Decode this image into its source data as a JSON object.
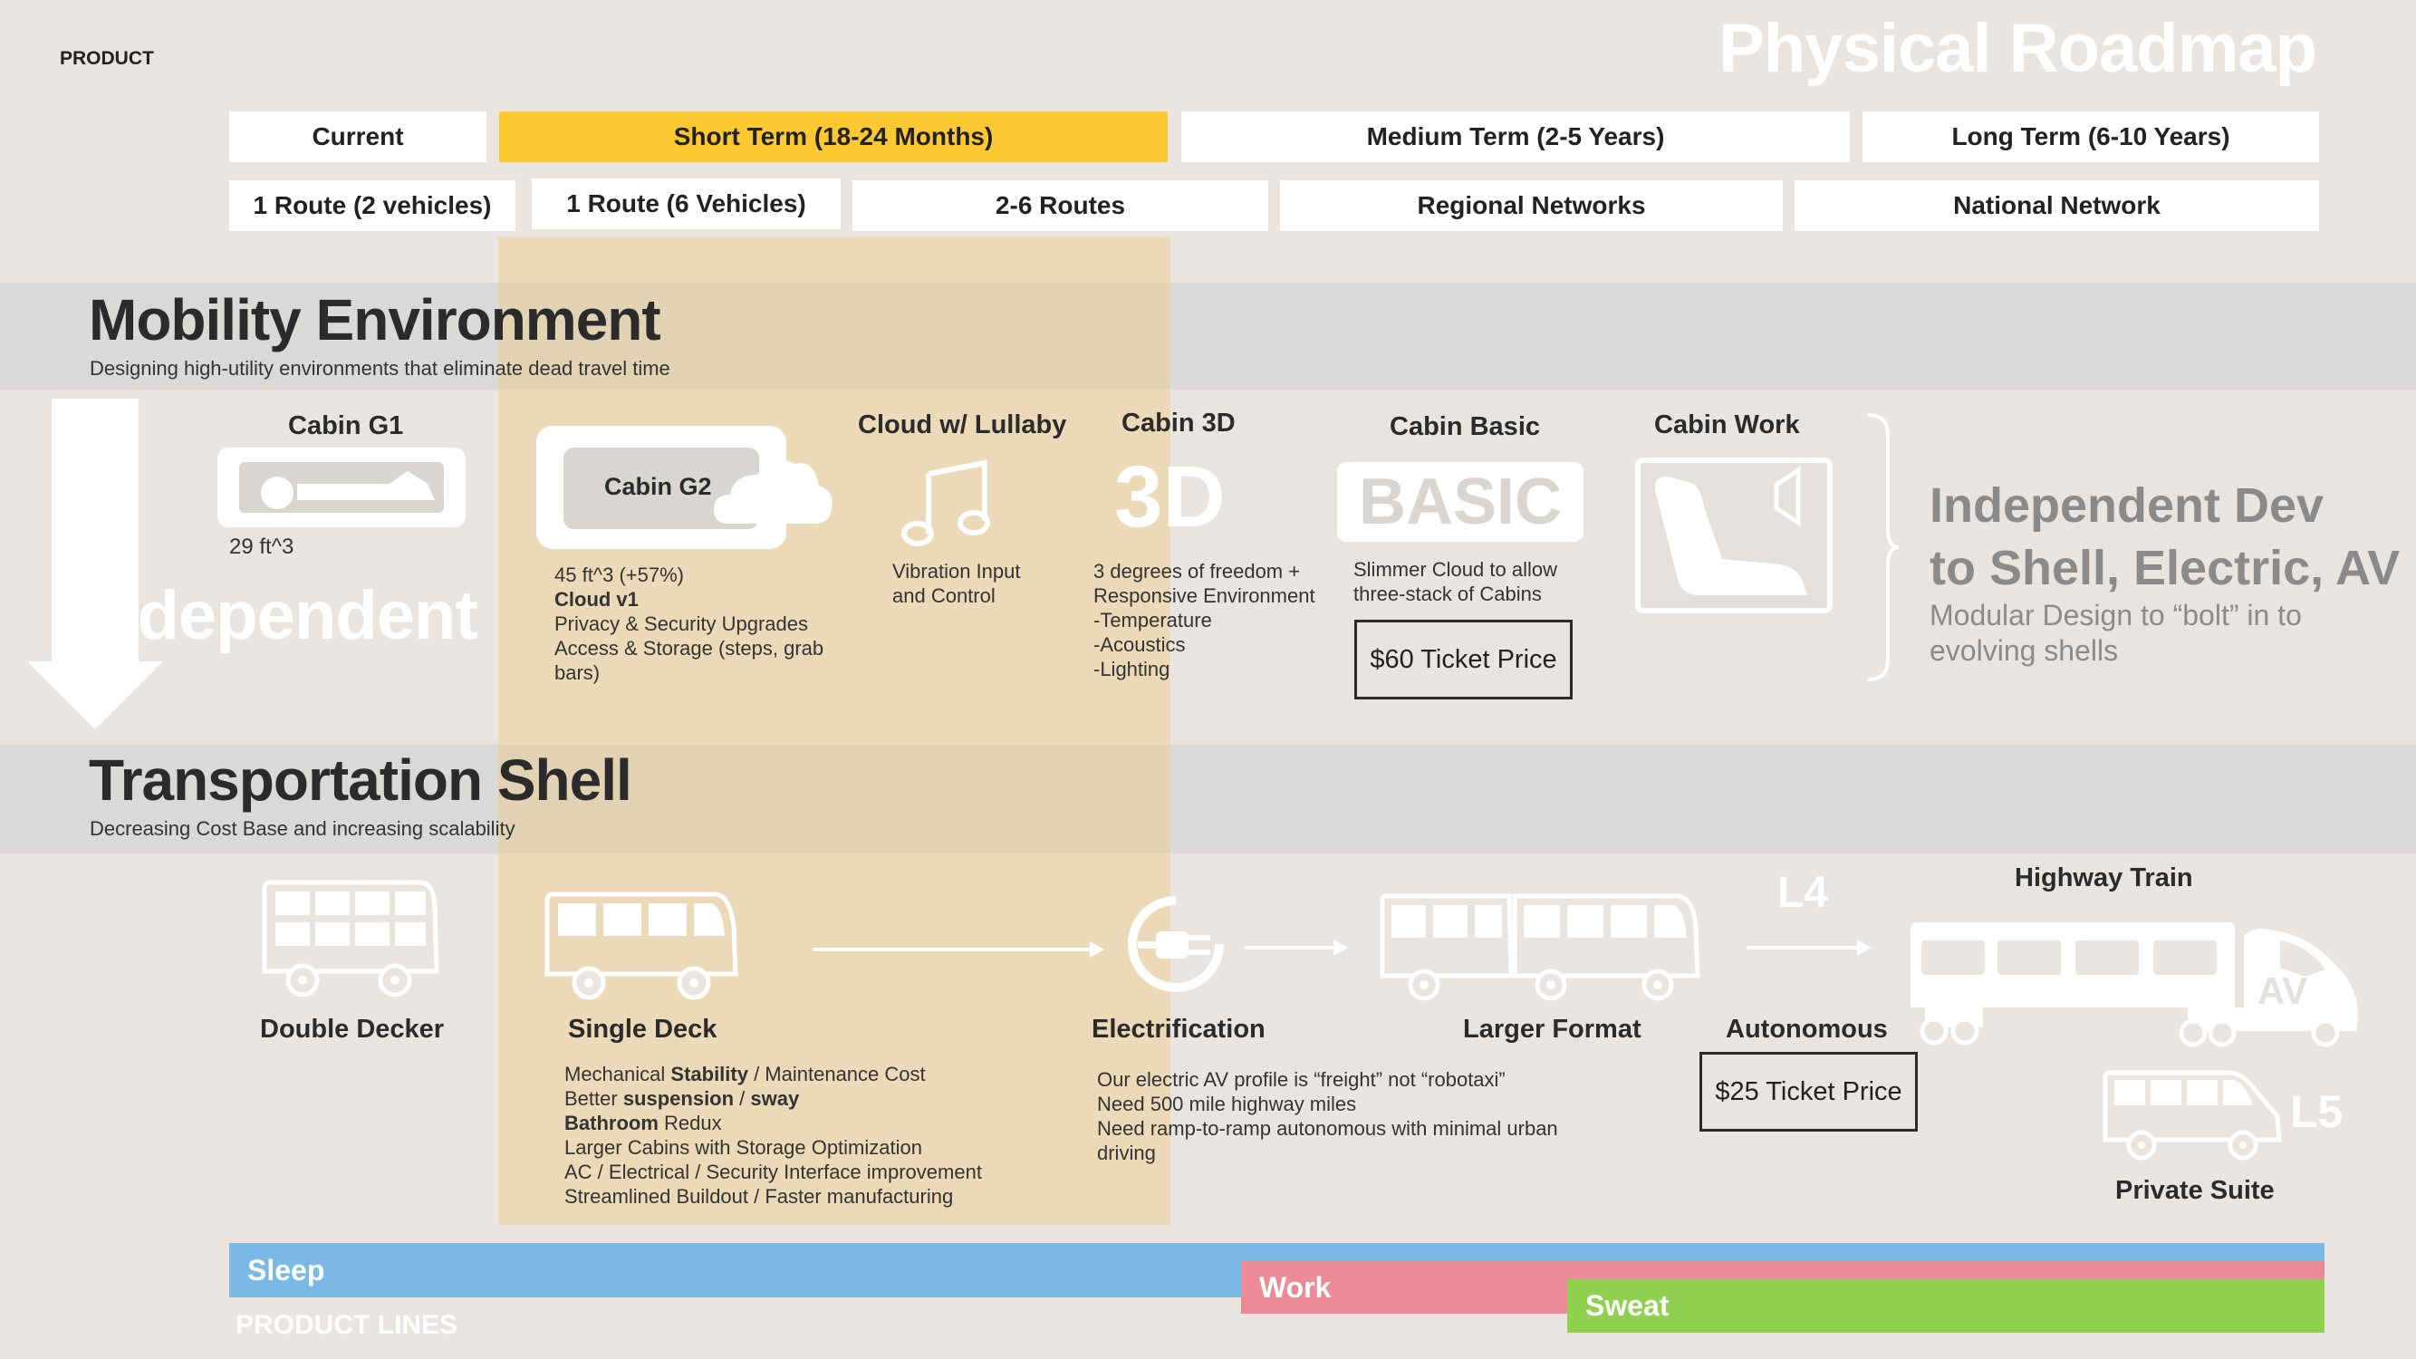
{
  "header": {
    "product_label": "PRODUCT",
    "title": "Physical Roadmap"
  },
  "timeline": {
    "terms": [
      "Current",
      "Short Term (18-24 Months)",
      "Medium Term (2-5 Years)",
      "Long Term (6-10 Years)"
    ],
    "routes": [
      "1 Route (2 vehicles)",
      "1 Route (6 Vehicles)",
      "2-6 Routes",
      "Regional Networks",
      "National Network"
    ]
  },
  "mobility": {
    "title": "Mobility Environment",
    "subtitle": "Designing high-utility environments that eliminate dead travel time",
    "cabin_g1": {
      "label": "Cabin G1",
      "size": "29 ft^3"
    },
    "cabin_g2": {
      "label": "Cabin G2",
      "size": "45 ft^3 (+57%)",
      "cloud": "Cloud v1",
      "line1": "Privacy & Security Upgrades",
      "line2": "Access & Storage (steps, grab",
      "line3": "bars)"
    },
    "lullaby": {
      "label": "Cloud w/ Lullaby",
      "line1": "Vibration Input",
      "line2": "and Control"
    },
    "cabin_3d": {
      "label": "Cabin 3D",
      "glyph": "3D",
      "line1": "3 degrees of freedom +",
      "line2": "Responsive Environment",
      "line3": "-Temperature",
      "line4": "-Acoustics",
      "line5": "-Lighting"
    },
    "cabin_basic": {
      "label": "Cabin Basic",
      "glyph": "BASIC",
      "line1": "Slimmer Cloud to allow",
      "line2": "three-stack of Cabins",
      "price": "$60 Ticket Price"
    },
    "cabin_work": {
      "label": "Cabin Work"
    },
    "independent_dev": {
      "line1": "Independent Dev",
      "line2": "to Shell, Electric, AV",
      "line3": "Modular Design to “bolt” in to",
      "line4": "evolving shells"
    },
    "independent_word": "Independent"
  },
  "shell": {
    "title": "Transportation Shell",
    "subtitle": "Decreasing Cost Base and increasing scalability",
    "double_decker": "Double Decker",
    "single_deck": {
      "label": "Single Deck",
      "l1a": "Mechanical ",
      "l1b": "Stability",
      "l1c": " / Maintenance Cost",
      "l2a": "Better ",
      "l2b": "suspension",
      "l2c": " / ",
      "l2d": "sway",
      "l3a": "Bathroom",
      "l3b": " Redux",
      "l4": "Larger Cabins with Storage Optimization",
      "l5": "AC / Electrical / Security Interface improvement",
      "l6": "Streamlined Buildout / Faster manufacturing"
    },
    "electrification": {
      "label": "Electrification",
      "line1": "Our electric AV profile is “freight” not “robotaxi”",
      "line2": "Need 500 mile highway miles",
      "line3": "Need ramp-to-ramp autonomous with minimal urban",
      "line4": "driving"
    },
    "larger_format": "Larger Format",
    "autonomous": {
      "label": "Autonomous",
      "l4": "L4",
      "price": "$25 Ticket Price"
    },
    "highway_train": {
      "label": "Highway Train",
      "av": "AV"
    },
    "private_suite": {
      "label": "Private Suite",
      "l5": "L5"
    }
  },
  "product_lines": {
    "label": "PRODUCT LINES",
    "sleep": "Sleep",
    "work": "Work",
    "sweat": "Sweat"
  },
  "colors": {
    "highlight": "#fcc933",
    "sleep": "#7ab8e6",
    "work": "#ec8a96",
    "sweat": "#8fd14f",
    "band": "#d9d9d8"
  }
}
